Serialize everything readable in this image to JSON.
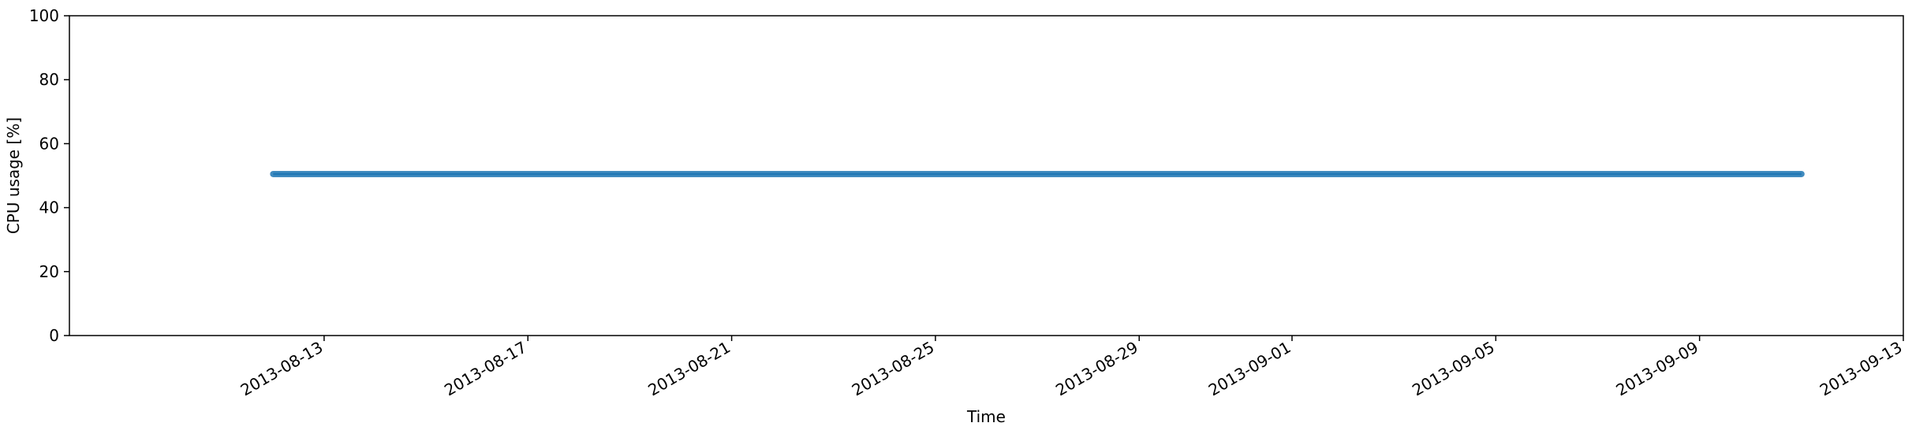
{
  "chart_data": {
    "type": "line",
    "title": "",
    "xlabel": "Time",
    "ylabel": "CPU usage [%]",
    "ylim": [
      0,
      100
    ],
    "xlim": [
      "2013-08-08",
      "2013-09-13"
    ],
    "y_ticks": [
      "0",
      "20",
      "40",
      "60",
      "80",
      "100"
    ],
    "x_ticks": [
      "2013-08-13",
      "2013-08-17",
      "2013-08-21",
      "2013-08-25",
      "2013-08-29",
      "2013-09-01",
      "2013-09-05",
      "2013-09-09",
      "2013-09-13"
    ],
    "grid": false,
    "legend": "none",
    "series": [
      {
        "color": "#1f77b4",
        "x": [
          "2013-08-12",
          "2013-09-11"
        ],
        "y": [
          50.5,
          50.5
        ]
      }
    ]
  }
}
